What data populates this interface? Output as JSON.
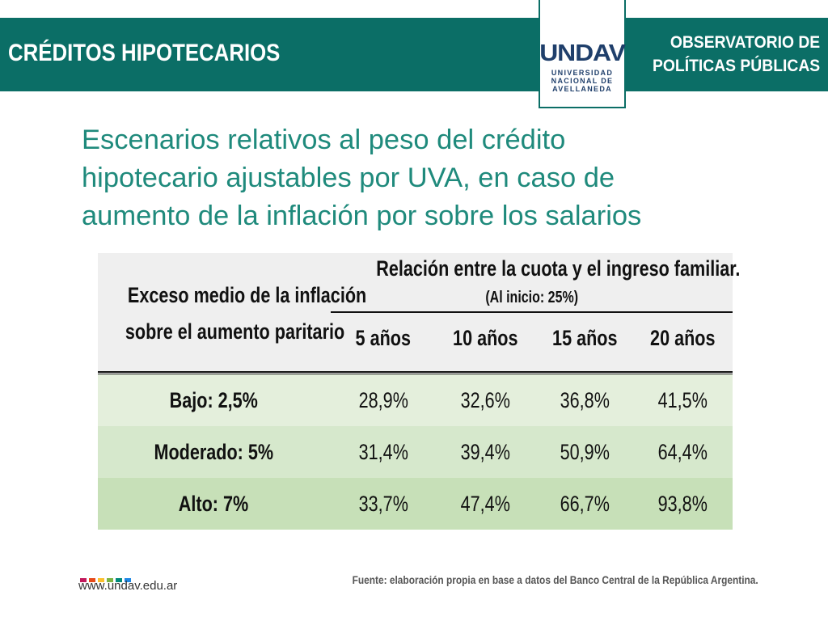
{
  "header": {
    "title": "CRÉDITOS HIPOTECARIOS",
    "right_line1": "OBSERVATORIO DE",
    "right_line2": "POLÍTICAS PÚBLICAS",
    "color": "#0b6e66"
  },
  "logo": {
    "mark": "UNDAV",
    "line1": "UNIVERSIDAD",
    "line2": "NACIONAL DE",
    "line3": "AVELLANEDA"
  },
  "slide": {
    "title_line1": "Escenarios relativos al peso del crédito",
    "title_line2": "hipotecario ajustables por UVA, en caso de",
    "title_line3": "aumento de la inflación por sobre los salarios",
    "title_color": "#1f8a7c"
  },
  "table": {
    "left_head_line1": "Exceso medio de la inflación",
    "left_head_line2": "sobre el aumento paritario",
    "group_head": "Relación entre la cuota y el ingreso familiar.",
    "group_sub": "(Al inicio: 25%)",
    "years": [
      "5 años",
      "10 años",
      "15 años",
      "20 años"
    ],
    "rows": [
      {
        "label": "Bajo: 2,5%",
        "values": [
          "28,9%",
          "32,6%",
          "36,8%",
          "41,5%"
        ],
        "bg": "#e4efdc"
      },
      {
        "label": "Moderado: 5%",
        "values": [
          "31,4%",
          "39,4%",
          "50,9%",
          "64,4%"
        ],
        "bg": "#d6e8cc"
      },
      {
        "label": "Alto: 7%",
        "values": [
          "33,7%",
          "47,4%",
          "66,7%",
          "93,8%"
        ],
        "bg": "#c7e0b8"
      }
    ]
  },
  "footer": {
    "url": "www.undav.edu.ar",
    "source": "Fuente: elaboración propia en base a datos del Banco Central de la República Argentina.",
    "dot_colors": [
      "#c2185b",
      "#e64a19",
      "#fbc02d",
      "#7cb342",
      "#00897b",
      "#1e88e5"
    ]
  }
}
